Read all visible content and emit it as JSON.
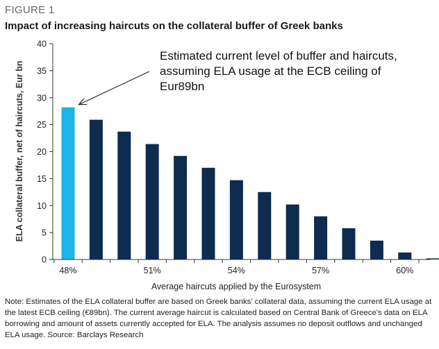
{
  "figure_label": "FIGURE 1",
  "figure_title": "Impact of increasing haircuts on the collateral buffer of Greek banks",
  "note": "Note: Estimates of the ELA collateral buffer are based on Greek banks' collateral data, assuming the current ELA usage at the latest ECB ceiling (€89bn). The current average haircut is calculated based on Central Bank of Greece's data on ELA borrowing and amount of assets currently accepted for ELA. The analysis assumes no deposit outflows and unchanged ELA usage. Source: Barclays Research",
  "colors": {
    "highlight_bar": "#1EB4E8",
    "bar": "#0D2C4F",
    "axis": "#333333"
  },
  "chart_data": {
    "type": "bar",
    "title": "Impact of increasing haircuts on the collateral buffer of Greek banks",
    "xlabel": "Average haircuts applied by the Eurosystem",
    "ylabel": "ELA collateral buffer, net of haircuts, Eur bn",
    "ylim": [
      0,
      40
    ],
    "yticks": [
      0,
      5,
      10,
      15,
      20,
      25,
      30,
      35,
      40
    ],
    "categories": [
      "48%",
      "49%",
      "50%",
      "51%",
      "52%",
      "53%",
      "54%",
      "55%",
      "56%",
      "57%",
      "58%",
      "59%",
      "60%",
      "61%"
    ],
    "visible_tick_labels": [
      "48%",
      "51%",
      "54%",
      "57%",
      "60%"
    ],
    "values": [
      28.2,
      25.9,
      23.7,
      21.4,
      19.2,
      17.0,
      14.7,
      12.5,
      10.2,
      8.0,
      5.8,
      3.5,
      1.3,
      0.2
    ],
    "highlight_index": 0,
    "annotation": {
      "lines": [
        "Estimated current level of buffer and haircuts,",
        "assuming ELA usage at the ECB ceiling of",
        "Eur89bn"
      ],
      "points_to_category": "48%"
    }
  }
}
